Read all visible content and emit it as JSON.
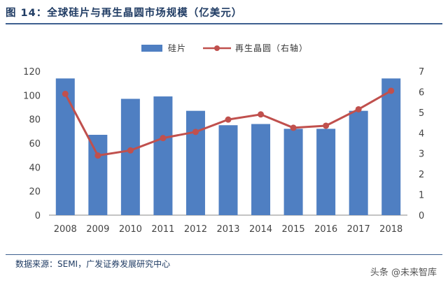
{
  "title": "图 14：全球硅片与再生晶圆市场规模（亿美元）",
  "source": "数据来源：SEMI，广发证券发展研究中心",
  "watermark": "头条 @未来智库",
  "chart_data": {
    "type": "bar+line",
    "categories": [
      "2008",
      "2009",
      "2010",
      "2011",
      "2012",
      "2013",
      "2014",
      "2015",
      "2016",
      "2017",
      "2018"
    ],
    "series": [
      {
        "name": "硅片",
        "type": "bar",
        "axis": "left",
        "color": "#4f7fc2",
        "values": [
          114,
          67,
          97,
          99,
          87,
          75,
          76,
          72,
          72,
          87,
          114
        ]
      },
      {
        "name": "再生晶圆（右轴）",
        "type": "line",
        "axis": "right",
        "color": "#c0504d",
        "values": [
          5.9,
          2.9,
          3.15,
          3.75,
          4.05,
          4.65,
          4.9,
          4.25,
          4.35,
          5.15,
          6.05
        ]
      }
    ],
    "ylim_left": [
      0,
      120
    ],
    "yticks_left": [
      0,
      20,
      40,
      60,
      80,
      100,
      120
    ],
    "ylim_right": [
      0,
      7
    ],
    "yticks_right": [
      0,
      1,
      2,
      3,
      4,
      5,
      6,
      7
    ],
    "legend_position": "top-center",
    "grid": false
  }
}
